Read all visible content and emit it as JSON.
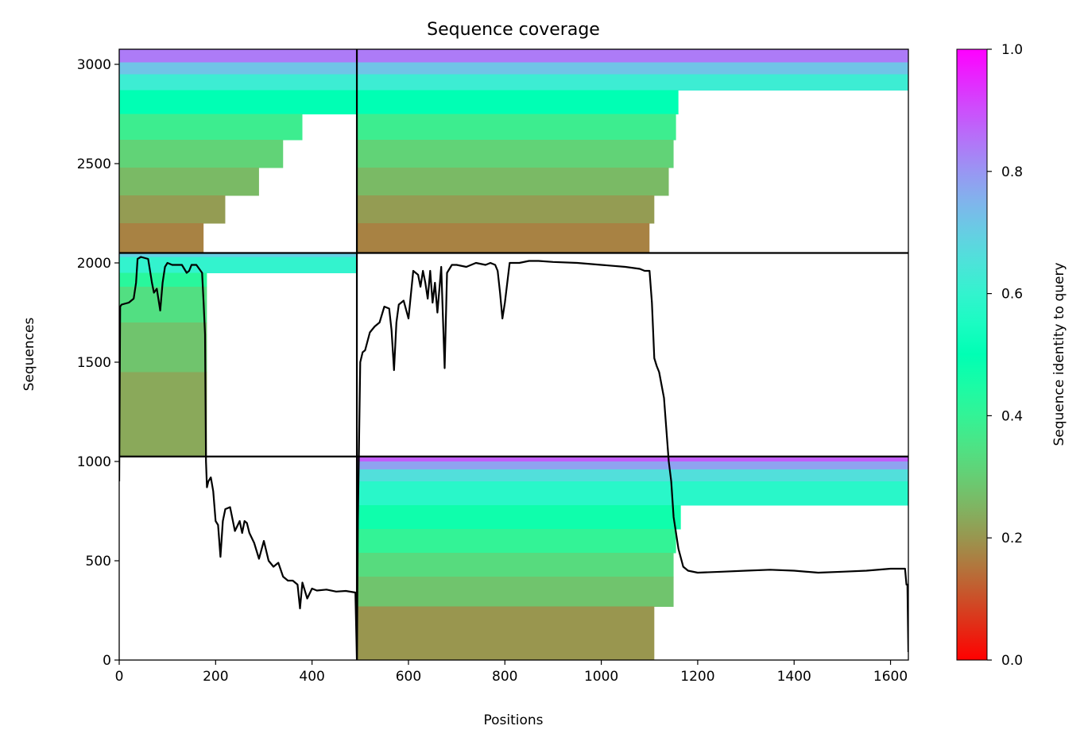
{
  "chart_data": {
    "type": "heatmap",
    "title": "Sequence coverage",
    "xlabel": "Positions",
    "ylabel": "Sequences",
    "xlim": [
      0,
      1637
    ],
    "ylim": [
      0,
      3076
    ],
    "xticks": [
      0,
      200,
      400,
      600,
      800,
      1000,
      1200,
      1400,
      1600
    ],
    "yticks": [
      0,
      500,
      1000,
      1500,
      2000,
      2500,
      3000
    ],
    "grid": false,
    "colorbar": {
      "label": "Sequence identity to query",
      "colormap": "rainbow_r",
      "range": [
        0.0,
        1.0
      ],
      "ticks": [
        "0.0",
        "0.2",
        "0.4",
        "0.6",
        "0.8",
        "1.0"
      ]
    },
    "block_boundaries": {
      "position_divider": 493,
      "sequence_dividers": [
        1025,
        2050
      ]
    },
    "coverage_blocks": [
      {
        "name": "lower-right",
        "x_start": 493,
        "seq_start": 0,
        "seq_end": 1025,
        "bands": [
          {
            "seq_from": 1000,
            "seq_to": 1025,
            "identity": 0.88,
            "x_end": 1637
          },
          {
            "seq_from": 960,
            "seq_to": 1000,
            "identity": 0.78,
            "x_end": 1637
          },
          {
            "seq_from": 900,
            "seq_to": 960,
            "identity": 0.66,
            "x_end": 1637
          },
          {
            "seq_from": 780,
            "seq_to": 900,
            "identity": 0.58,
            "x_end": 1637
          },
          {
            "seq_from": 660,
            "seq_to": 780,
            "identity": 0.47,
            "x_end": 1165
          },
          {
            "seq_from": 540,
            "seq_to": 660,
            "identity": 0.4,
            "x_end": 1155
          },
          {
            "seq_from": 420,
            "seq_to": 540,
            "identity": 0.33,
            "x_end": 1150
          },
          {
            "seq_from": 270,
            "seq_to": 420,
            "identity": 0.28,
            "x_end": 1150
          },
          {
            "seq_from": 0,
            "seq_to": 270,
            "identity": 0.2,
            "x_end": 1110
          }
        ]
      },
      {
        "name": "middle-left",
        "x_start": 0,
        "seq_start": 1025,
        "seq_end": 2050,
        "bands": [
          {
            "seq_from": 2030,
            "seq_to": 2050,
            "identity": 0.7,
            "x_end": 493
          },
          {
            "seq_from": 1950,
            "seq_to": 2030,
            "identity": 0.6,
            "x_end": 493
          },
          {
            "seq_from": 1880,
            "seq_to": 1950,
            "identity": 0.42,
            "x_end": 182
          },
          {
            "seq_from": 1700,
            "seq_to": 1880,
            "identity": 0.34,
            "x_end": 182
          },
          {
            "seq_from": 1450,
            "seq_to": 1700,
            "identity": 0.28,
            "x_end": 182
          },
          {
            "seq_from": 1025,
            "seq_to": 1450,
            "identity": 0.23,
            "x_end": 182
          }
        ]
      },
      {
        "name": "upper-left",
        "x_start": 0,
        "seq_start": 2050,
        "seq_end": 3076,
        "bands": [
          {
            "seq_from": 3010,
            "seq_to": 3076,
            "identity": 0.84,
            "x_end": 493
          },
          {
            "seq_from": 2950,
            "seq_to": 3010,
            "identity": 0.72,
            "x_end": 493
          },
          {
            "seq_from": 2870,
            "seq_to": 2950,
            "identity": 0.62,
            "x_end": 493
          },
          {
            "seq_from": 2750,
            "seq_to": 2870,
            "identity": 0.5,
            "x_end": 493
          },
          {
            "seq_from": 2620,
            "seq_to": 2750,
            "identity": 0.38,
            "x_end": 380
          },
          {
            "seq_from": 2480,
            "seq_to": 2620,
            "identity": 0.31,
            "x_end": 340
          },
          {
            "seq_from": 2340,
            "seq_to": 2480,
            "identity": 0.26,
            "x_end": 290
          },
          {
            "seq_from": 2200,
            "seq_to": 2340,
            "identity": 0.21,
            "x_end": 220
          },
          {
            "seq_from": 2050,
            "seq_to": 2200,
            "identity": 0.17,
            "x_end": 175
          }
        ]
      },
      {
        "name": "upper-right",
        "x_start": 493,
        "seq_start": 2050,
        "seq_end": 3076,
        "bands": [
          {
            "seq_from": 3010,
            "seq_to": 3076,
            "identity": 0.84,
            "x_end": 1637
          },
          {
            "seq_from": 2950,
            "seq_to": 3010,
            "identity": 0.72,
            "x_end": 1637
          },
          {
            "seq_from": 2870,
            "seq_to": 2950,
            "identity": 0.62,
            "x_end": 1637
          },
          {
            "seq_from": 2750,
            "seq_to": 2870,
            "identity": 0.5,
            "x_end": 1160
          },
          {
            "seq_from": 2620,
            "seq_to": 2750,
            "identity": 0.38,
            "x_end": 1155
          },
          {
            "seq_from": 2480,
            "seq_to": 2620,
            "identity": 0.31,
            "x_end": 1150
          },
          {
            "seq_from": 2340,
            "seq_to": 2480,
            "identity": 0.26,
            "x_end": 1140
          },
          {
            "seq_from": 2200,
            "seq_to": 2340,
            "identity": 0.21,
            "x_end": 1110
          },
          {
            "seq_from": 2050,
            "seq_to": 2200,
            "identity": 0.17,
            "x_end": 1100
          }
        ]
      }
    ],
    "coverage_line": {
      "name": "coverage",
      "color": "#000000",
      "x": [
        0,
        2,
        5,
        20,
        30,
        35,
        38,
        45,
        60,
        68,
        72,
        78,
        85,
        90,
        95,
        100,
        110,
        130,
        140,
        145,
        150,
        160,
        172,
        175,
        178,
        180,
        182,
        185,
        190,
        195,
        200,
        205,
        210,
        215,
        220,
        230,
        240,
        250,
        255,
        260,
        265,
        270,
        280,
        290,
        300,
        310,
        320,
        330,
        340,
        350,
        360,
        370,
        375,
        380,
        390,
        400,
        410,
        430,
        450,
        470,
        490,
        493,
        495,
        500,
        505,
        510,
        520,
        530,
        540,
        550,
        560,
        565,
        570,
        575,
        580,
        590,
        600,
        610,
        620,
        625,
        630,
        635,
        640,
        645,
        650,
        655,
        660,
        668,
        675,
        680,
        690,
        700,
        720,
        740,
        760,
        770,
        780,
        785,
        790,
        795,
        800,
        810,
        830,
        850,
        870,
        900,
        950,
        1000,
        1050,
        1080,
        1090,
        1100,
        1105,
        1110,
        1115,
        1120,
        1130,
        1140,
        1145,
        1150,
        1160,
        1170,
        1180,
        1200,
        1250,
        1300,
        1350,
        1400,
        1450,
        1500,
        1550,
        1600,
        1630,
        1633,
        1635,
        1637
      ],
      "y": [
        900,
        1780,
        1790,
        1800,
        1820,
        1900,
        2020,
        2030,
        2020,
        1900,
        1850,
        1870,
        1760,
        1900,
        1980,
        2000,
        1990,
        1990,
        1950,
        1960,
        1990,
        1990,
        1950,
        1800,
        1640,
        1000,
        870,
        900,
        920,
        850,
        700,
        680,
        520,
        700,
        760,
        770,
        650,
        700,
        640,
        700,
        690,
        640,
        590,
        510,
        600,
        500,
        470,
        490,
        420,
        400,
        400,
        380,
        260,
        390,
        310,
        360,
        350,
        355,
        345,
        348,
        340,
        0,
        700,
        1500,
        1550,
        1560,
        1650,
        1680,
        1700,
        1780,
        1770,
        1660,
        1460,
        1700,
        1790,
        1810,
        1720,
        1960,
        1940,
        1880,
        1960,
        1900,
        1820,
        1960,
        1800,
        1900,
        1750,
        1980,
        1470,
        1950,
        1990,
        1990,
        1980,
        2000,
        1990,
        2000,
        1990,
        1960,
        1850,
        1720,
        1800,
        2000,
        2000,
        2010,
        2010,
        2005,
        2000,
        1990,
        1980,
        1970,
        1960,
        1960,
        1800,
        1520,
        1480,
        1450,
        1320,
        1000,
        900,
        720,
        560,
        470,
        450,
        440,
        445,
        450,
        455,
        450,
        440,
        445,
        450,
        460,
        460,
        380,
        380,
        40
      ]
    }
  }
}
